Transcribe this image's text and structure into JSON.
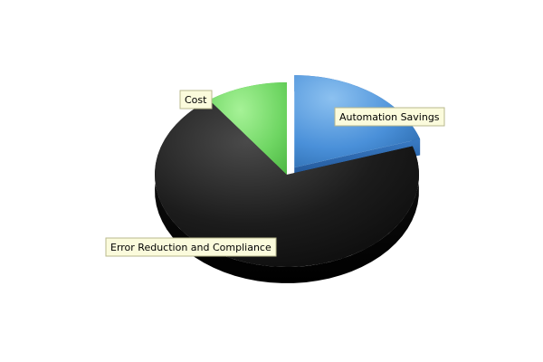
{
  "chart_data": {
    "type": "pie",
    "style": "3d-exploded",
    "title": "",
    "slices": [
      {
        "label": "Automation Savings",
        "value": 20,
        "color": "#4a90d9",
        "exploded": true
      },
      {
        "label": "Error Reduction and Compliance",
        "value": 70,
        "color": "#1c1c1c",
        "exploded": false
      },
      {
        "label": "Cost",
        "value": 10,
        "color": "#6fd663",
        "exploded": false
      }
    ],
    "legend": "none",
    "grid": false
  }
}
